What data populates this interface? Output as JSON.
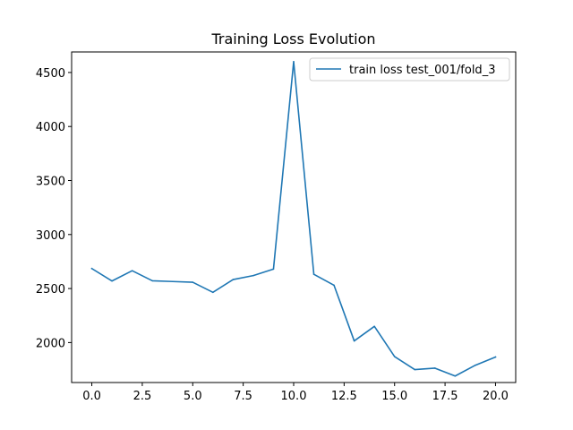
{
  "chart_data": {
    "type": "line",
    "title": "Training Loss Evolution",
    "xlabel": "",
    "ylabel": "",
    "xlim": [
      -1.0,
      21.0
    ],
    "ylim": [
      1630,
      4690
    ],
    "xticks": [
      0.0,
      2.5,
      5.0,
      7.5,
      10.0,
      12.5,
      15.0,
      17.5,
      20.0
    ],
    "xtick_labels": [
      "0.0",
      "2.5",
      "5.0",
      "7.5",
      "10.0",
      "12.5",
      "15.0",
      "17.5",
      "20.0"
    ],
    "yticks": [
      2000,
      2500,
      3000,
      3500,
      4000,
      4500
    ],
    "ytick_labels": [
      "2000",
      "2500",
      "3000",
      "3500",
      "4000",
      "4500"
    ],
    "grid": false,
    "legend_position": "top-right",
    "series": [
      {
        "name": "train loss test_001/fold_3",
        "color": "#1f77b4",
        "x": [
          0,
          1,
          2,
          3,
          4,
          5,
          6,
          7,
          8,
          9,
          10,
          11,
          12,
          13,
          14,
          15,
          16,
          17,
          18,
          19,
          20
        ],
        "values": [
          2685,
          2570,
          2665,
          2572,
          2565,
          2558,
          2465,
          2583,
          2620,
          2680,
          4600,
          2632,
          2530,
          2015,
          2150,
          1870,
          1750,
          1763,
          1690,
          1790,
          1866
        ]
      }
    ]
  }
}
